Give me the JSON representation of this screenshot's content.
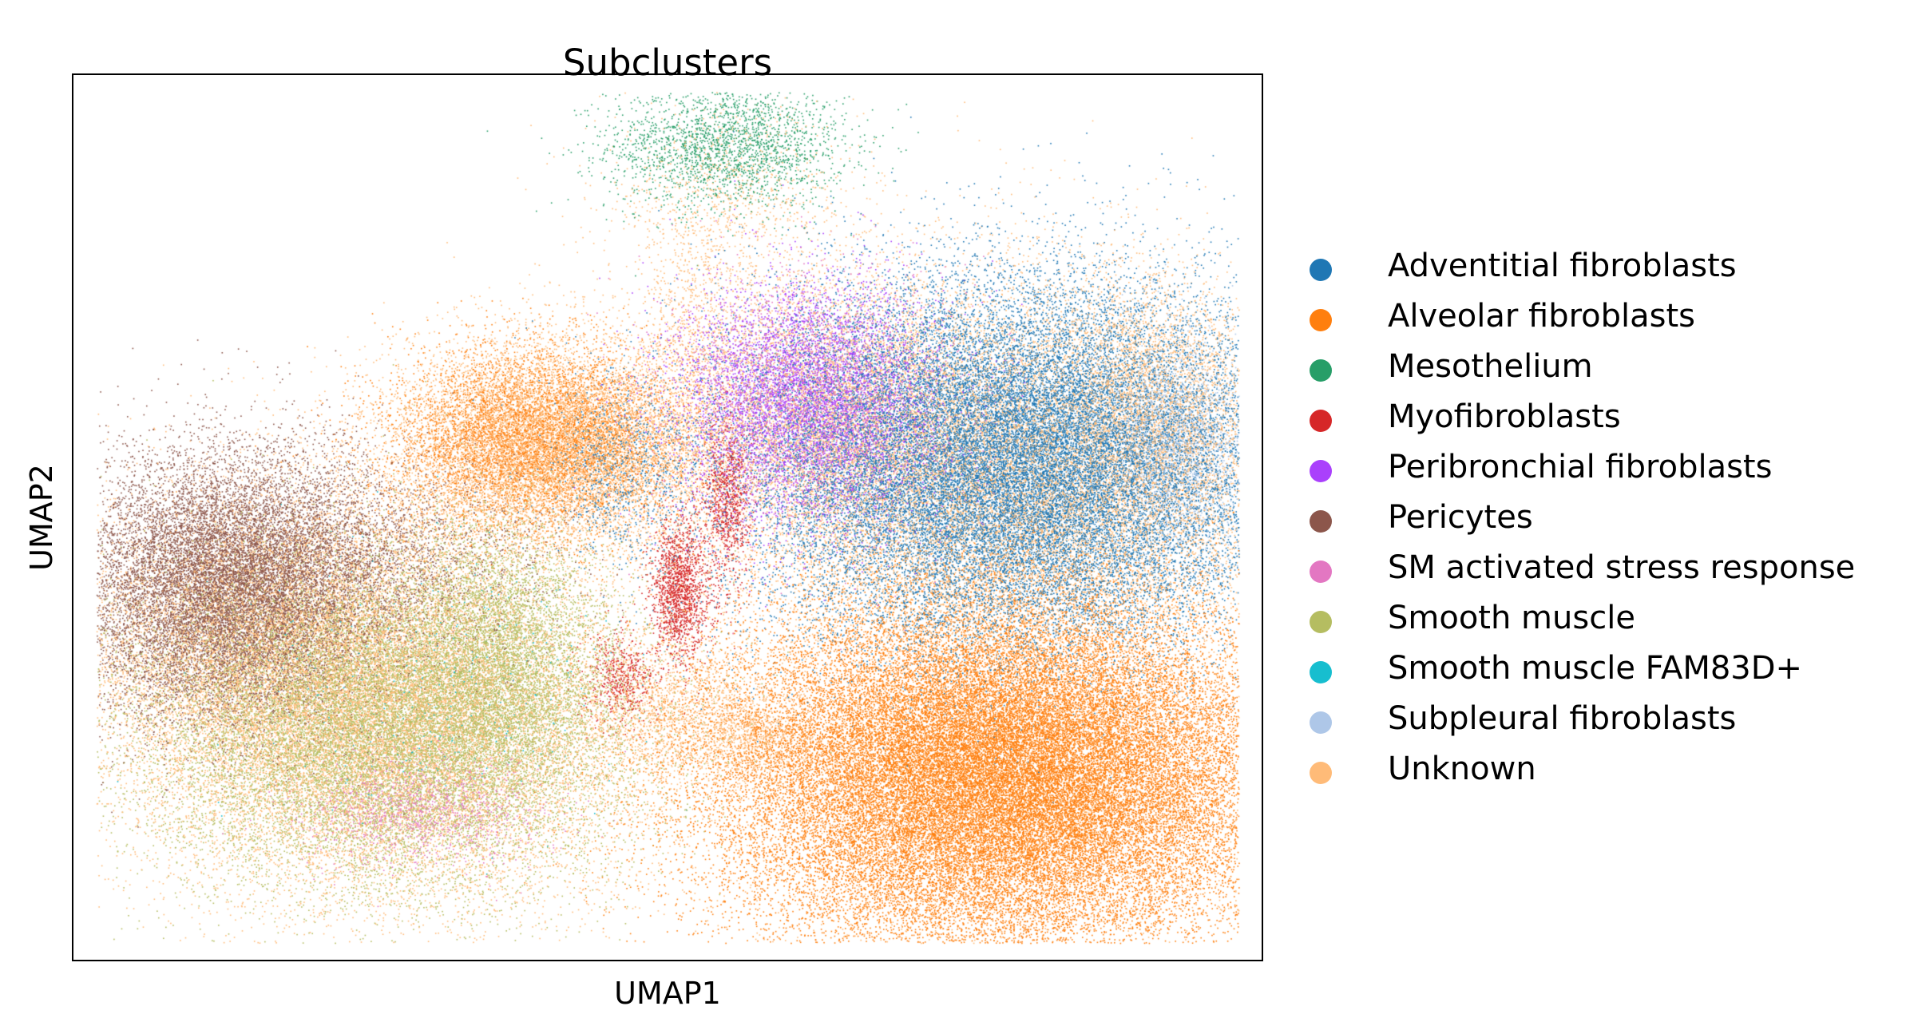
{
  "chart_data": {
    "type": "scatter",
    "title": "Subclusters",
    "xlabel": "UMAP1",
    "ylabel": "UMAP2",
    "xticks": [],
    "yticks": [],
    "grid": false,
    "legend_position": "right",
    "series": [
      {
        "name": "Adventitial fibroblasts",
        "color": "#1f77b4"
      },
      {
        "name": "Alveolar fibroblasts",
        "color": "#ff7f0e"
      },
      {
        "name": "Mesothelium",
        "color": "#279e68"
      },
      {
        "name": "Myofibroblasts",
        "color": "#d62728"
      },
      {
        "name": "Peribronchial fibroblasts",
        "color": "#aa40fc"
      },
      {
        "name": "Pericytes",
        "color": "#8c564b"
      },
      {
        "name": "SM activated stress response",
        "color": "#e377c2"
      },
      {
        "name": "Smooth muscle",
        "color": "#b5bd61"
      },
      {
        "name": "Smooth muscle FAM83D+",
        "color": "#17becf"
      },
      {
        "name": "Subpleural fibroblasts",
        "color": "#aec7e8"
      },
      {
        "name": "Unknown",
        "color": "#ffbb78"
      }
    ],
    "point_clusters": [
      {
        "series": "Mesothelium",
        "center": [
          0.55,
          0.92
        ],
        "spread": [
          0.05,
          0.035
        ],
        "count": 2200
      },
      {
        "series": "Unknown",
        "center": [
          0.55,
          0.86
        ],
        "spread": [
          0.055,
          0.05
        ],
        "count": 900
      },
      {
        "series": "Peribronchial fibroblasts",
        "center": [
          0.62,
          0.63
        ],
        "spread": [
          0.055,
          0.065
        ],
        "count": 6000
      },
      {
        "series": "SM activated stress response",
        "center": [
          0.62,
          0.63
        ],
        "spread": [
          0.06,
          0.07
        ],
        "count": 2200
      },
      {
        "series": "Unknown",
        "center": [
          0.63,
          0.62
        ],
        "spread": [
          0.07,
          0.08
        ],
        "count": 4500
      },
      {
        "series": "Adventitial fibroblasts",
        "center": [
          0.79,
          0.56
        ],
        "spread": [
          0.11,
          0.1
        ],
        "count": 30000
      },
      {
        "series": "Unknown",
        "center": [
          0.79,
          0.55
        ],
        "spread": [
          0.12,
          0.11
        ],
        "count": 15000
      },
      {
        "series": "Subpleural fibroblasts",
        "center": [
          0.93,
          0.58
        ],
        "spread": [
          0.03,
          0.06
        ],
        "count": 1800
      },
      {
        "series": "Unknown",
        "center": [
          0.91,
          0.62
        ],
        "spread": [
          0.04,
          0.07
        ],
        "count": 2500
      },
      {
        "series": "Alveolar fibroblasts",
        "center": [
          0.78,
          0.21
        ],
        "spread": [
          0.12,
          0.1
        ],
        "count": 45000
      },
      {
        "series": "Unknown",
        "center": [
          0.78,
          0.21
        ],
        "spread": [
          0.13,
          0.11
        ],
        "count": 4000
      },
      {
        "series": "Unknown",
        "center": [
          0.4,
          0.58
        ],
        "spread": [
          0.07,
          0.06
        ],
        "count": 9000
      },
      {
        "series": "Alveolar fibroblasts",
        "center": [
          0.39,
          0.59
        ],
        "spread": [
          0.06,
          0.05
        ],
        "count": 6000
      },
      {
        "series": "Adventitial fibroblasts",
        "center": [
          0.46,
          0.56
        ],
        "spread": [
          0.03,
          0.05
        ],
        "count": 900
      },
      {
        "series": "Pericytes",
        "center": [
          0.13,
          0.42
        ],
        "spread": [
          0.065,
          0.075
        ],
        "count": 14000
      },
      {
        "series": "Unknown",
        "center": [
          0.18,
          0.36
        ],
        "spread": [
          0.09,
          0.09
        ],
        "count": 9000
      },
      {
        "series": "Smooth muscle",
        "center": [
          0.26,
          0.27
        ],
        "spread": [
          0.1,
          0.09
        ],
        "count": 18000
      },
      {
        "series": "Unknown",
        "center": [
          0.27,
          0.26
        ],
        "spread": [
          0.11,
          0.1
        ],
        "count": 14000
      },
      {
        "series": "Smooth muscle",
        "center": [
          0.36,
          0.34
        ],
        "spread": [
          0.04,
          0.08
        ],
        "count": 4000
      },
      {
        "series": "Pericytes",
        "center": [
          0.24,
          0.45
        ],
        "spread": [
          0.08,
          0.06
        ],
        "count": 2500
      },
      {
        "series": "SM activated stress response",
        "center": [
          0.29,
          0.17
        ],
        "spread": [
          0.05,
          0.03
        ],
        "count": 1200
      },
      {
        "series": "Myofibroblasts",
        "center": [
          0.51,
          0.42
        ],
        "spread": [
          0.012,
          0.04
        ],
        "count": 1500
      },
      {
        "series": "Myofibroblasts",
        "center": [
          0.55,
          0.52
        ],
        "spread": [
          0.01,
          0.05
        ],
        "count": 900
      },
      {
        "series": "Myofibroblasts",
        "center": [
          0.46,
          0.32
        ],
        "spread": [
          0.015,
          0.025
        ],
        "count": 500
      },
      {
        "series": "Unknown",
        "center": [
          0.5,
          0.28
        ],
        "spread": [
          0.04,
          0.04
        ],
        "count": 1200
      },
      {
        "series": "Unknown",
        "center": [
          0.57,
          0.25
        ],
        "spread": [
          0.03,
          0.03
        ],
        "count": 900
      },
      {
        "series": "Unknown",
        "center": [
          0.52,
          0.72
        ],
        "spread": [
          0.02,
          0.06
        ],
        "count": 500
      },
      {
        "series": "Smooth muscle FAM83D+",
        "center": [
          0.3,
          0.3
        ],
        "spread": [
          0.08,
          0.08
        ],
        "count": 400
      }
    ]
  }
}
